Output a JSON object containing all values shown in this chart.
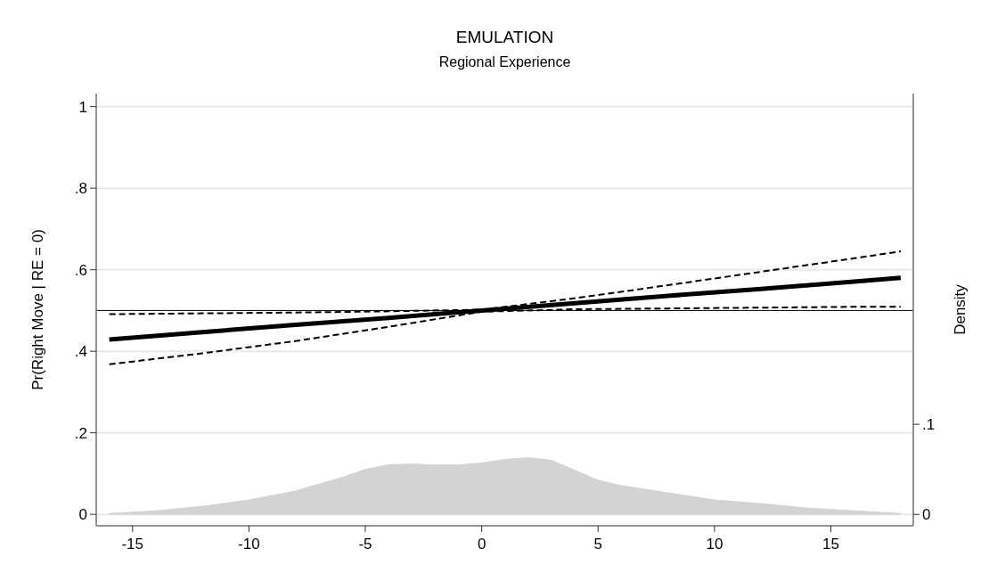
{
  "chart_data": {
    "type": "line",
    "title": "EMULATION",
    "subtitle": "Regional Experience",
    "ylabel": "Pr(Right Move | RE = 0)",
    "y2label": "Density",
    "xlim": [
      -16.56,
      18.54
    ],
    "xticks": [
      -15,
      -10,
      -5,
      0,
      5,
      10,
      15
    ],
    "ylim": [
      -0.028,
      1.032
    ],
    "yticks": [
      0,
      {
        "value": 0.2,
        "label": ".2"
      },
      {
        "value": 0.4,
        "label": ".4"
      },
      {
        "value": 0.6,
        "label": ".6"
      },
      {
        "value": 0.8,
        "label": ".8"
      },
      1
    ],
    "y2lim": [
      -0.0126,
      0.467
    ],
    "y2ticks": [
      0,
      {
        "value": 0.1,
        "label": ".1"
      }
    ],
    "grid": "y",
    "ref_lines": [
      {
        "axis": "y",
        "value": 0.5,
        "color": "#000000",
        "line_style": "solid"
      }
    ],
    "series": [
      {
        "type": "area",
        "axis": "y2",
        "color": "#d3d3d3",
        "x": [
          -16,
          -14,
          -12,
          -10,
          -8,
          -6,
          -5,
          -4,
          -3,
          -2,
          -1,
          0,
          1,
          2,
          3,
          4,
          5,
          6,
          8,
          10,
          12,
          14,
          16,
          18
        ],
        "values": [
          0.001,
          0.004,
          0.009,
          0.016,
          0.026,
          0.041,
          0.05,
          0.055,
          0.056,
          0.055,
          0.055,
          0.057,
          0.061,
          0.063,
          0.06,
          0.049,
          0.038,
          0.032,
          0.024,
          0.016,
          0.012,
          0.007,
          0.004,
          0.001
        ]
      },
      {
        "type": "line",
        "color": "#000000",
        "line_style": "solid",
        "x": [
          -16,
          -12,
          -8,
          -4,
          0,
          4,
          8,
          12,
          16,
          18
        ],
        "values": [
          0.429,
          0.447,
          0.465,
          0.482,
          0.5,
          0.518,
          0.536,
          0.553,
          0.571,
          0.58
        ]
      },
      {
        "type": "line",
        "color": "#000000",
        "line_style": "dashed",
        "x": [
          -16,
          -12,
          -8,
          -4,
          0,
          4,
          8,
          12,
          16,
          18
        ],
        "values": [
          0.491,
          0.493,
          0.495,
          0.498,
          0.502,
          0.53,
          0.562,
          0.595,
          0.628,
          0.645
        ]
      },
      {
        "type": "line",
        "color": "#000000",
        "line_style": "dashed",
        "x": [
          -16,
          -12,
          -8,
          -4,
          0,
          4,
          8,
          12,
          16,
          18
        ],
        "values": [
          0.368,
          0.395,
          0.425,
          0.46,
          0.497,
          0.503,
          0.505,
          0.507,
          0.509,
          0.509
        ]
      }
    ]
  }
}
